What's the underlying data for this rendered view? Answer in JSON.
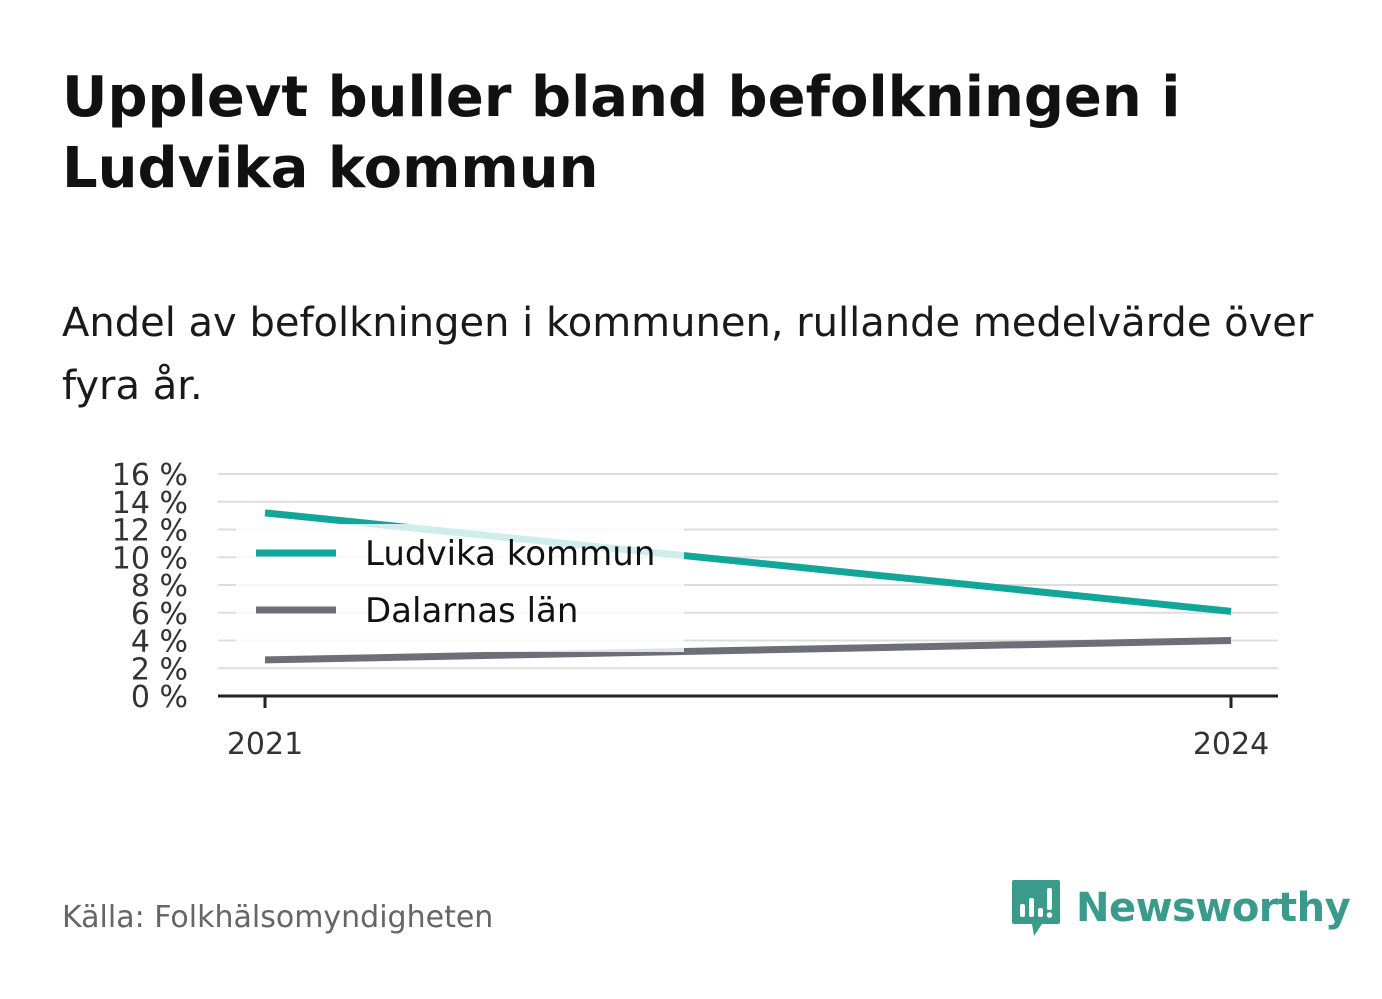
{
  "title": "Upplevt buller bland befolkningen i Ludvika kommun",
  "subtitle": "Andel av befolkningen i kommunen, rullande medelvärde över fyra år.",
  "source": "Källa: Folkhälsomyndigheten",
  "brand": {
    "name": "Newsworthy",
    "color": "#3a9a8c",
    "icon": "newsworthy-logo-icon"
  },
  "chart_data": {
    "type": "line",
    "x": [
      "2021",
      "2024"
    ],
    "series": [
      {
        "name": "Ludvika kommun",
        "values": [
          13.2,
          6.1
        ],
        "color": "#12a59a"
      },
      {
        "name": "Dalarnas län",
        "values": [
          2.6,
          4.0
        ],
        "color": "#6e6e78"
      }
    ],
    "ylim": [
      0,
      16
    ],
    "yticks": [
      0,
      2,
      4,
      6,
      8,
      10,
      12,
      14,
      16
    ],
    "ytick_labels": [
      "0 %",
      "2 %",
      "4 %",
      "6 %",
      "8 %",
      "10 %",
      "12 %",
      "14 %",
      "16 %"
    ],
    "grid": true,
    "legend": "top-left"
  }
}
